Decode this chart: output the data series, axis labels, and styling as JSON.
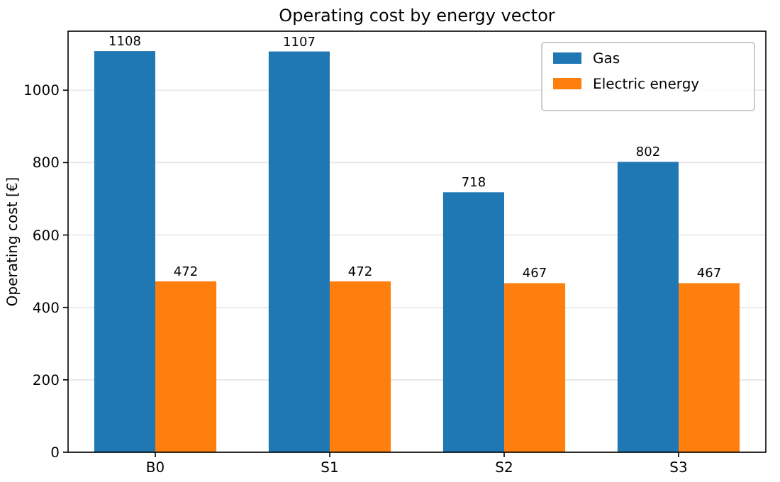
{
  "chart_data": {
    "type": "bar",
    "title": "Operating cost by energy vector",
    "ylabel": "Operating cost [€]",
    "categories": [
      "B0",
      "S1",
      "S2",
      "S3"
    ],
    "series": [
      {
        "name": "Gas",
        "color": "#1f77b4",
        "values": [
          1108,
          1107,
          718,
          802
        ]
      },
      {
        "name": "Electric energy",
        "color": "#ff7f0e",
        "values": [
          472,
          472,
          467,
          467
        ]
      }
    ],
    "ylim": [
      0,
      1163
    ],
    "yticks": [
      0,
      200,
      400,
      600,
      800,
      1000
    ],
    "grid": "y",
    "legend": "top right",
    "data_labels": true
  }
}
